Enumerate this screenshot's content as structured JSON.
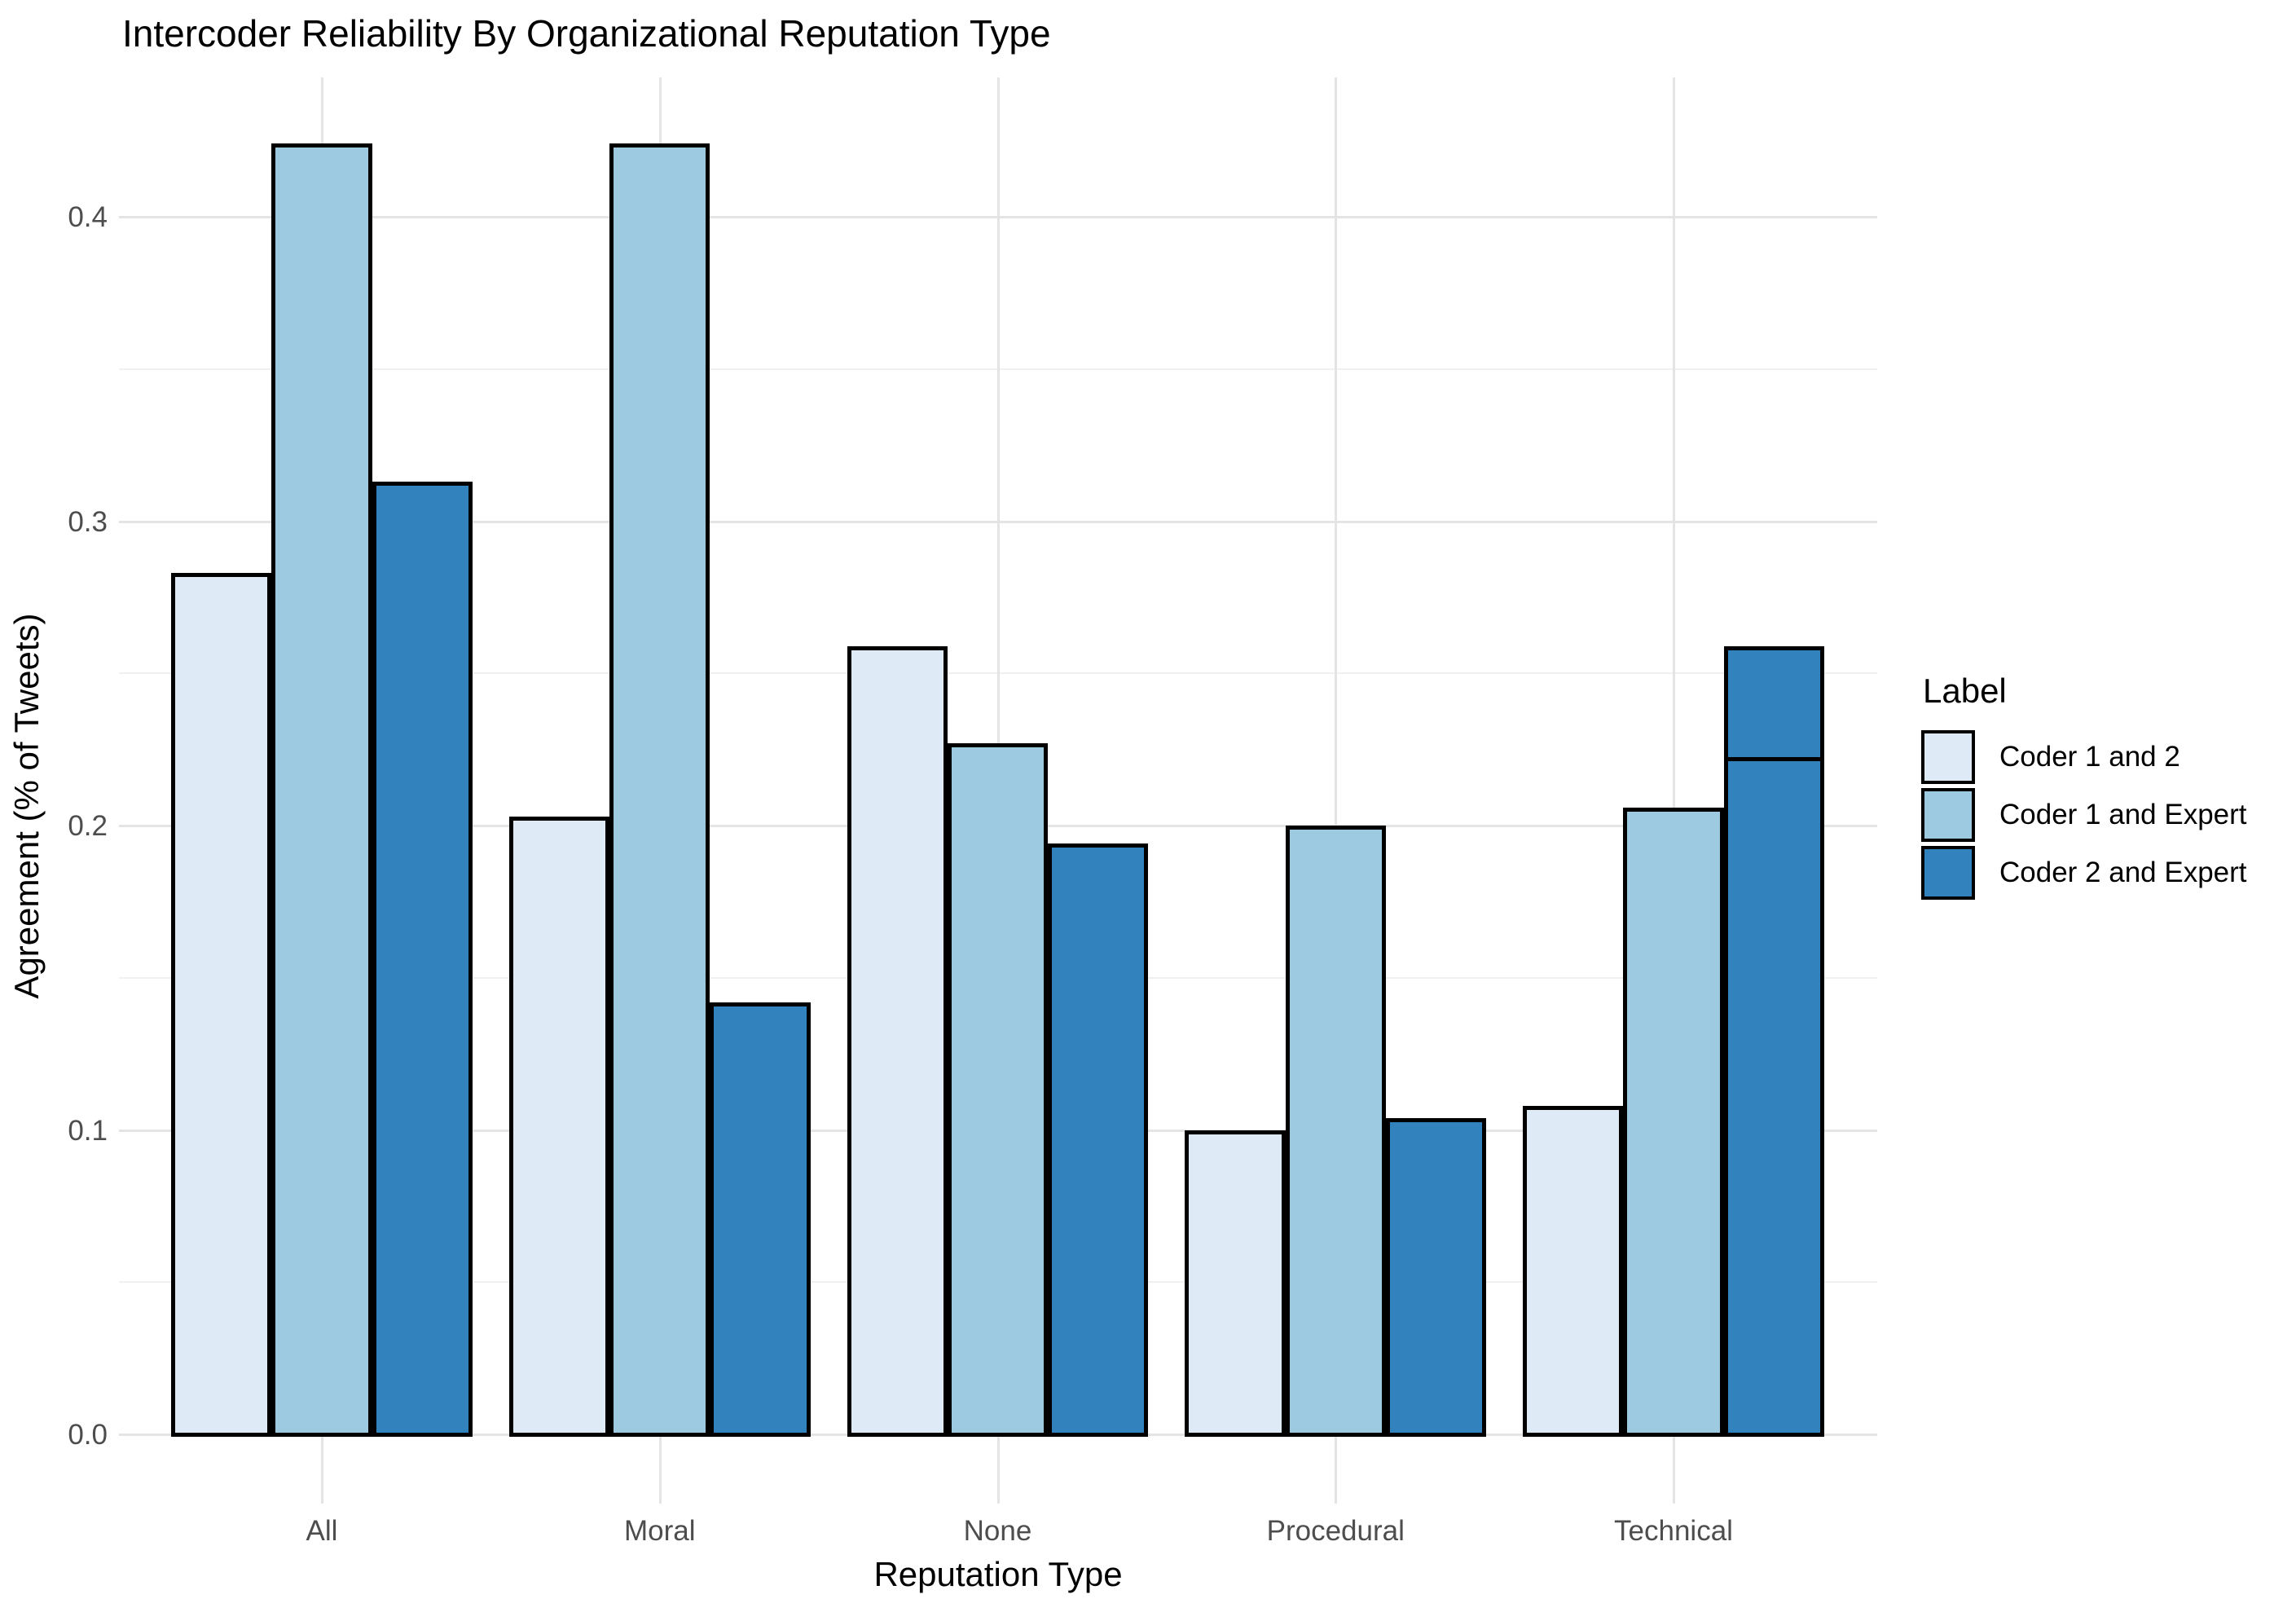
{
  "page_title": "Intercoder Reliability By Organizational Reputation Type",
  "colors": {
    "background": "#FFFFFF",
    "grid_major": "#E4E4E4",
    "grid_minor": "#F0F0F0",
    "bar_outline": "#000000",
    "tick_label": "#4D4D4D",
    "title_text": "#000000"
  },
  "chart_data": {
    "type": "bar",
    "title": "Intercoder Reliability By Organizational Reputation Type",
    "xlabel": "Reputation Type",
    "ylabel": "Agreement (% of Tweets)",
    "categories": [
      "All",
      "Moral",
      "None",
      "Procedural",
      "Technical"
    ],
    "series": [
      {
        "name": "Coder 1 and 2",
        "color": "#DEEBF7",
        "values": [
          0.283,
          0.203,
          0.259,
          0.1,
          0.108
        ]
      },
      {
        "name": "Coder 1 and Expert",
        "color": "#9ECAE1",
        "values": [
          0.424,
          0.424,
          0.227,
          0.2,
          0.206
        ]
      },
      {
        "name": "Coder 2 and Expert",
        "color": "#3182BD",
        "values": [
          0.313,
          0.142,
          0.194,
          0.104,
          0.259
        ]
      }
    ],
    "annotations": [
      {
        "category": "Technical",
        "series": "Coder 2 and Expert",
        "type": "segment-divider",
        "value": 0.222
      }
    ],
    "legend_title": "Label",
    "legend_position": "right",
    "ylim": [
      0,
      0.444
    ],
    "ytick_labels": [
      "0.0",
      "0.1",
      "0.2",
      "0.3",
      "0.4"
    ],
    "ytick_values": [
      0.0,
      0.1,
      0.2,
      0.3,
      0.4
    ],
    "yminor_values": [
      0.05,
      0.15,
      0.25,
      0.35
    ],
    "grid": true,
    "bar_outline": "black"
  }
}
